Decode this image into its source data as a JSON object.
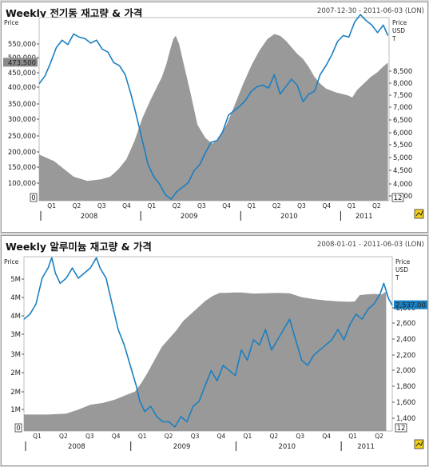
{
  "chart_data": [
    {
      "type": "area",
      "title": "Weekly 전기동 재고량 & 가격",
      "date_range": "2007-12-30 - 2011-06-03 (LON)",
      "left_axis_label": "Price",
      "right_axis_label": "Price",
      "right_axis_unit_lines": [
        "USD",
        "T"
      ],
      "left_ticks": [
        "100,000",
        "150,000",
        "200,000",
        "250,000",
        "300,000",
        "350,000",
        "400,000",
        "450,000",
        "500,000",
        "550,000"
      ],
      "left_ylim": [
        55000,
        610000
      ],
      "left_zero_label": "0",
      "right_ticks": [
        "3,500",
        "4,000",
        "4,500",
        "5,000",
        "5,500",
        "6,000",
        "6,500",
        "7,000",
        "7,500",
        "8,000",
        "8,500"
      ],
      "right_ylim": [
        3100,
        9200
      ],
      "right_min_label": "12",
      "current_left_value": "473,500",
      "highlight_color": "#8a8a8a",
      "area_color": "#999999",
      "line_color": "#1a7fc1",
      "quarter_labels": [
        "Q1",
        "Q2",
        "Q3",
        "Q4",
        "Q1",
        "Q2",
        "Q3",
        "Q4",
        "Q1",
        "Q2",
        "Q3",
        "Q4",
        "Q1",
        "Q2"
      ],
      "year_labels": [
        "2008",
        "2009",
        "2010",
        "2011"
      ],
      "series": [
        {
          "name": "재고량",
          "axis": "left",
          "style": "area",
          "points": [
            [
              0,
              195000
            ],
            [
              1.3,
              175000
            ],
            [
              2.2,
              150000
            ],
            [
              3.0,
              128000
            ],
            [
              4.2,
              115000
            ],
            [
              5.4,
              120000
            ],
            [
              6.2,
              128000
            ],
            [
              6.9,
              150000
            ],
            [
              7.6,
              180000
            ],
            [
              8.3,
              235000
            ],
            [
              9.0,
              305000
            ],
            [
              9.7,
              360000
            ],
            [
              10.2,
              395000
            ],
            [
              10.7,
              430000
            ],
            [
              11.1,
              470000
            ],
            [
              11.4,
              510000
            ],
            [
              11.7,
              545000
            ],
            [
              11.9,
              555000
            ],
            [
              12.2,
              530000
            ],
            [
              12.6,
              470000
            ],
            [
              13.2,
              380000
            ],
            [
              13.8,
              285000
            ],
            [
              14.5,
              245000
            ],
            [
              15.1,
              228000
            ],
            [
              15.7,
              245000
            ],
            [
              16.4,
              290000
            ],
            [
              17.1,
              350000
            ],
            [
              17.8,
              410000
            ],
            [
              18.5,
              465000
            ],
            [
              19.2,
              510000
            ],
            [
              19.9,
              545000
            ],
            [
              20.5,
              560000
            ],
            [
              21.0,
              555000
            ],
            [
              21.5,
              540000
            ],
            [
              22.0,
              520000
            ],
            [
              22.5,
              500000
            ],
            [
              23.0,
              485000
            ],
            [
              23.5,
              460000
            ],
            [
              24.0,
              430000
            ],
            [
              24.5,
              410000
            ],
            [
              25.0,
              395000
            ],
            [
              25.5,
              388000
            ],
            [
              26.0,
              382000
            ],
            [
              26.5,
              378000
            ],
            [
              27.0,
              373000
            ],
            [
              27.3,
              368000
            ],
            [
              27.7,
              390000
            ],
            [
              28.3,
              410000
            ],
            [
              28.9,
              430000
            ],
            [
              29.5,
              445000
            ],
            [
              30.0,
              462000
            ],
            [
              30.4,
              473500
            ]
          ]
        },
        {
          "name": "가격",
          "axis": "right",
          "style": "line",
          "points": [
            [
              0,
              7000
            ],
            [
              0.5,
              7250
            ],
            [
              1.0,
              7700
            ],
            [
              1.5,
              8200
            ],
            [
              2.0,
              8450
            ],
            [
              2.5,
              8300
            ],
            [
              3.0,
              8650
            ],
            [
              3.5,
              8550
            ],
            [
              4.0,
              8500
            ],
            [
              4.5,
              8350
            ],
            [
              5.0,
              8450
            ],
            [
              5.5,
              8150
            ],
            [
              6.0,
              8050
            ],
            [
              6.5,
              7700
            ],
            [
              7.0,
              7600
            ],
            [
              7.5,
              7300
            ],
            [
              8.0,
              6650
            ],
            [
              8.5,
              5900
            ],
            [
              9.0,
              5100
            ],
            [
              9.5,
              4300
            ],
            [
              10.0,
              3900
            ],
            [
              10.5,
              3650
            ],
            [
              11.0,
              3300
            ],
            [
              11.5,
              3150
            ],
            [
              12.0,
              3400
            ],
            [
              12.5,
              3550
            ],
            [
              13.0,
              3700
            ],
            [
              13.5,
              4100
            ],
            [
              14.0,
              4300
            ],
            [
              14.5,
              4700
            ],
            [
              15.0,
              5050
            ],
            [
              15.5,
              5100
            ],
            [
              16.0,
              5400
            ],
            [
              16.5,
              5950
            ],
            [
              17.0,
              6100
            ],
            [
              17.5,
              6250
            ],
            [
              18.0,
              6450
            ],
            [
              18.5,
              6750
            ],
            [
              19.0,
              6900
            ],
            [
              19.5,
              6950
            ],
            [
              20.0,
              6850
            ],
            [
              20.5,
              7300
            ],
            [
              21.0,
              6650
            ],
            [
              21.5,
              6900
            ],
            [
              22.0,
              7150
            ],
            [
              22.5,
              6950
            ],
            [
              23.0,
              6400
            ],
            [
              23.5,
              6650
            ],
            [
              24.0,
              6750
            ],
            [
              24.5,
              7300
            ],
            [
              25.0,
              7600
            ],
            [
              25.5,
              7950
            ],
            [
              26.0,
              8400
            ],
            [
              26.5,
              8600
            ],
            [
              27.0,
              8550
            ],
            [
              27.5,
              9050
            ],
            [
              28.0,
              9300
            ],
            [
              28.5,
              9100
            ],
            [
              29.0,
              8950
            ],
            [
              29.5,
              8700
            ],
            [
              30.0,
              8950
            ],
            [
              30.4,
              8600
            ]
          ]
        }
      ]
    },
    {
      "type": "area",
      "title": "Weekly 알루미늄 재고량 & 가격",
      "date_range": "2008-01-01 - 2011-06-03 (LON)",
      "left_axis_label": "Price",
      "right_axis_label": "Price",
      "right_axis_unit_lines": [
        "USD",
        "T"
      ],
      "left_ticks": [
        "1M",
        "2M",
        "2M",
        "3M",
        "3M",
        "4M",
        "4M",
        "5M"
      ],
      "left_ylim": [
        550000,
        5850000
      ],
      "left_zero_label": "0",
      "right_ticks": [
        "1,400",
        "1,600",
        "1,800",
        "2,000",
        "2,200",
        "2,400",
        "2,600",
        "2,800"
      ],
      "right_ylim": [
        1310,
        3010
      ],
      "right_min_label": "12",
      "current_right_value": "2,537.00",
      "highlight_color": "#1a7fc1",
      "area_color": "#999999",
      "line_color": "#1a7fc1",
      "quarter_labels": [
        "Q1",
        "Q2",
        "Q3",
        "Q4",
        "Q1",
        "Q2",
        "Q3",
        "Q4",
        "Q1",
        "Q2",
        "Q3",
        "Q4",
        "Q1",
        "Q2"
      ],
      "year_labels": [
        "2008",
        "2009",
        "2010",
        "2011"
      ],
      "series": [
        {
          "name": "재고량",
          "axis": "left",
          "style": "area",
          "points": [
            [
              0,
              1050000
            ],
            [
              2.0,
              1050000
            ],
            [
              3.5,
              1080000
            ],
            [
              4.5,
              1200000
            ],
            [
              5.5,
              1350000
            ],
            [
              6.5,
              1400000
            ],
            [
              7.5,
              1500000
            ],
            [
              8.5,
              1650000
            ],
            [
              9.2,
              1750000
            ],
            [
              9.7,
              2000000
            ],
            [
              10.2,
              2300000
            ],
            [
              10.8,
              2700000
            ],
            [
              11.4,
              3100000
            ],
            [
              12.0,
              3350000
            ],
            [
              12.6,
              3600000
            ],
            [
              13.2,
              3900000
            ],
            [
              13.8,
              4100000
            ],
            [
              14.4,
              4300000
            ],
            [
              15.0,
              4500000
            ],
            [
              15.6,
              4650000
            ],
            [
              16.2,
              4750000
            ],
            [
              16.8,
              4750000
            ],
            [
              17.4,
              4760000
            ],
            [
              18.0,
              4760000
            ],
            [
              19.0,
              4730000
            ],
            [
              20.0,
              4740000
            ],
            [
              21.0,
              4750000
            ],
            [
              22.0,
              4740000
            ],
            [
              23.0,
              4620000
            ],
            [
              24.0,
              4560000
            ],
            [
              25.0,
              4520000
            ],
            [
              26.0,
              4490000
            ],
            [
              27.0,
              4480000
            ],
            [
              27.4,
              4490000
            ],
            [
              27.8,
              4680000
            ],
            [
              28.3,
              4700000
            ],
            [
              29.0,
              4720000
            ],
            [
              29.6,
              4700000
            ],
            [
              30.0,
              4790000
            ]
          ]
        },
        {
          "name": "가격",
          "axis": "right",
          "style": "line",
          "points": [
            [
              0,
              2400
            ],
            [
              0.5,
              2450
            ],
            [
              1.0,
              2550
            ],
            [
              1.5,
              2800
            ],
            [
              2.0,
              2900
            ],
            [
              2.3,
              3000
            ],
            [
              2.6,
              2850
            ],
            [
              3.0,
              2750
            ],
            [
              3.5,
              2800
            ],
            [
              4.0,
              2900
            ],
            [
              4.5,
              2800
            ],
            [
              5.0,
              2850
            ],
            [
              5.5,
              2900
            ],
            [
              6.0,
              3000
            ],
            [
              6.3,
              2900
            ],
            [
              6.8,
              2800
            ],
            [
              7.3,
              2550
            ],
            [
              7.8,
              2300
            ],
            [
              8.3,
              2150
            ],
            [
              8.8,
              1950
            ],
            [
              9.3,
              1750
            ],
            [
              9.6,
              1600
            ],
            [
              10.0,
              1500
            ],
            [
              10.5,
              1550
            ],
            [
              11.0,
              1450
            ],
            [
              11.5,
              1400
            ],
            [
              12.0,
              1400
            ],
            [
              12.5,
              1350
            ],
            [
              13.0,
              1450
            ],
            [
              13.5,
              1400
            ],
            [
              14.0,
              1550
            ],
            [
              14.5,
              1600
            ],
            [
              15.0,
              1750
            ],
            [
              15.5,
              1900
            ],
            [
              16.0,
              1800
            ],
            [
              16.5,
              1950
            ],
            [
              17.0,
              1900
            ],
            [
              17.5,
              1850
            ],
            [
              18.0,
              2100
            ],
            [
              18.5,
              2000
            ],
            [
              19.0,
              2200
            ],
            [
              19.5,
              2150
            ],
            [
              20.0,
              2300
            ],
            [
              20.5,
              2100
            ],
            [
              21.0,
              2200
            ],
            [
              21.5,
              2300
            ],
            [
              22.0,
              2400
            ],
            [
              22.5,
              2200
            ],
            [
              23.0,
              2000
            ],
            [
              23.5,
              1950
            ],
            [
              24.0,
              2050
            ],
            [
              24.5,
              2100
            ],
            [
              25.0,
              2150
            ],
            [
              25.5,
              2200
            ],
            [
              26.0,
              2300
            ],
            [
              26.5,
              2200
            ],
            [
              27.0,
              2350
            ],
            [
              27.5,
              2450
            ],
            [
              28.0,
              2400
            ],
            [
              28.5,
              2500
            ],
            [
              29.0,
              2550
            ],
            [
              29.5,
              2650
            ],
            [
              29.8,
              2750
            ],
            [
              30.2,
              2600
            ],
            [
              30.5,
              2537
            ]
          ]
        }
      ]
    }
  ]
}
